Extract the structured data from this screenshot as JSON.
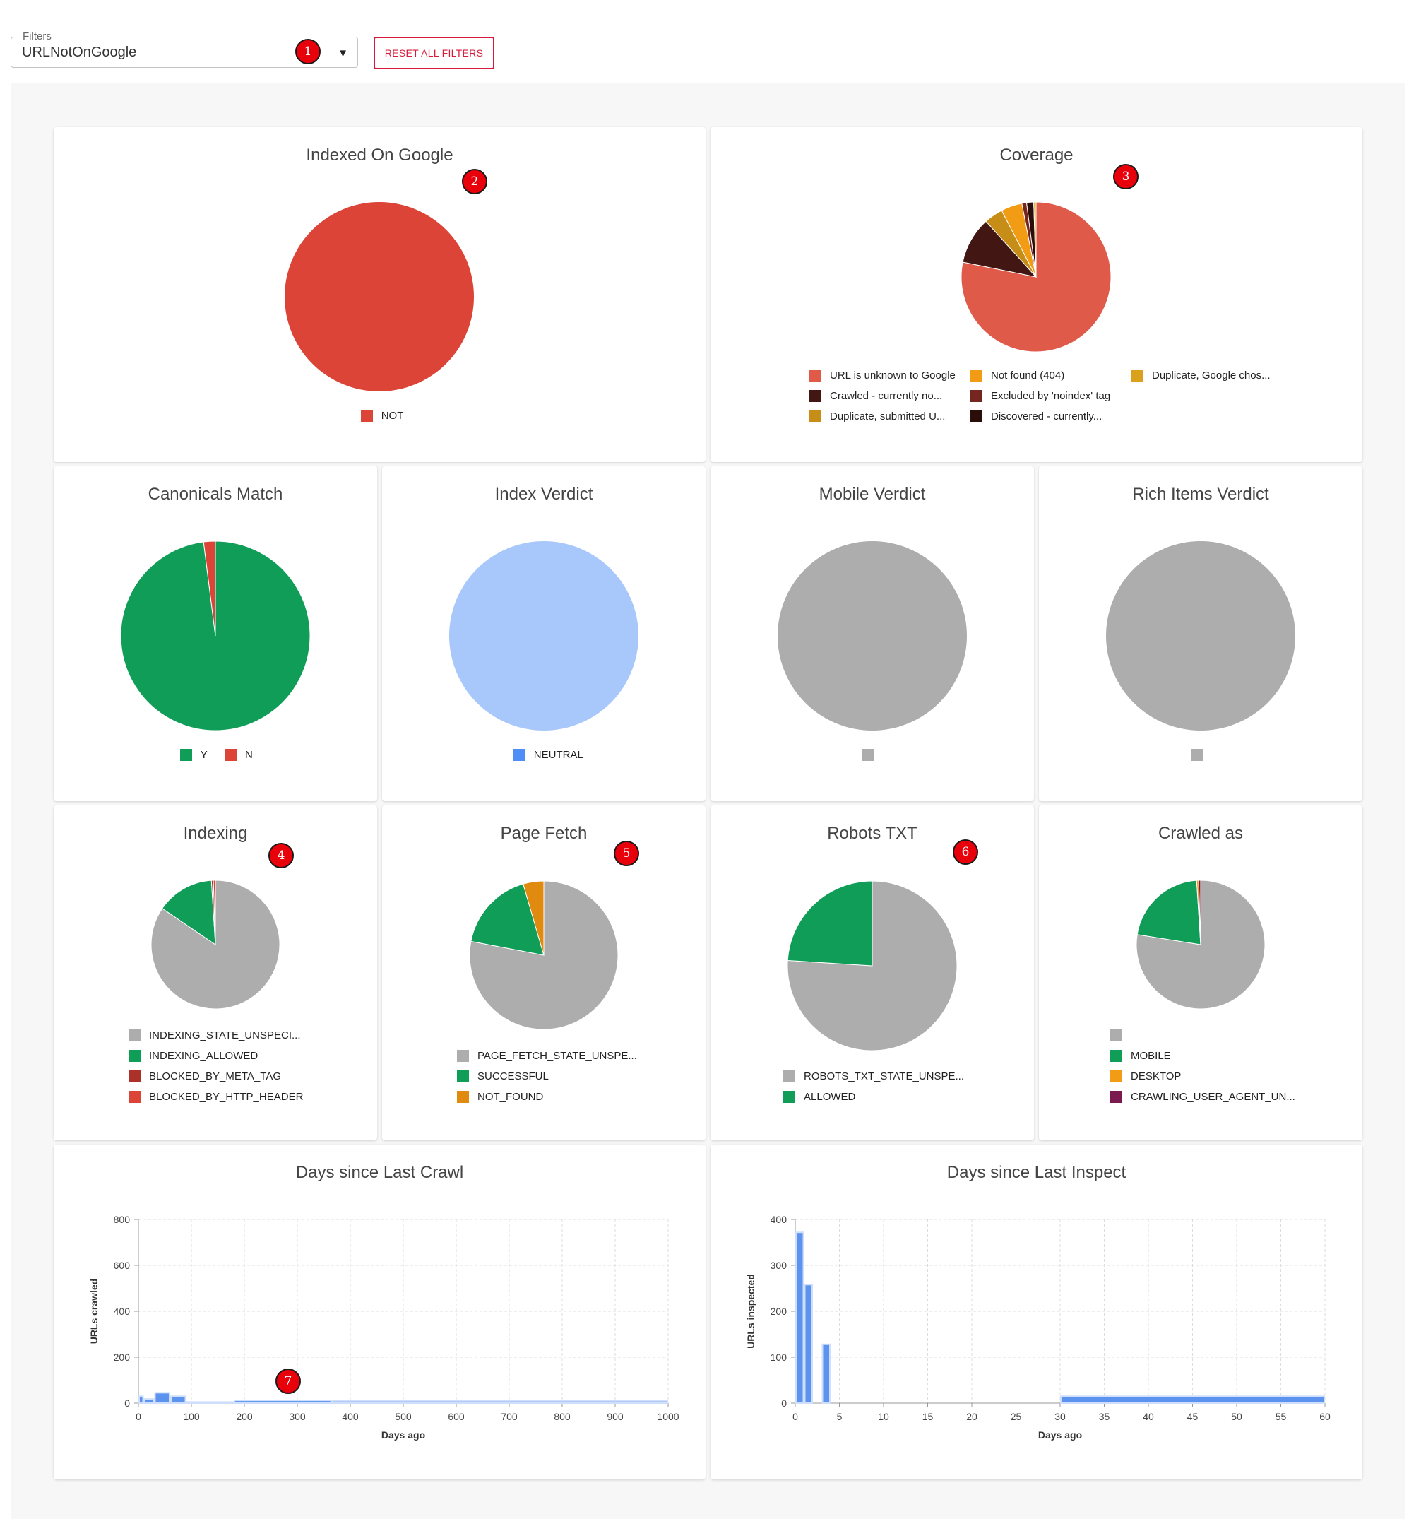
{
  "filters": {
    "label": "Filters",
    "value": "URLNotOnGoogle"
  },
  "reset_button": "RESET ALL FILTERS",
  "markers": [
    "1",
    "2",
    "3",
    "4",
    "5",
    "6",
    "7"
  ],
  "chart_data": [
    {
      "id": "indexed",
      "type": "pie",
      "title": "Indexed On Google",
      "slices": [
        {
          "label": "NOT",
          "value": 100,
          "color": "#db4437"
        }
      ]
    },
    {
      "id": "coverage",
      "type": "pie",
      "title": "Coverage",
      "slices": [
        {
          "label": "URL is unknown to Google",
          "value": 77,
          "color": "#e05a4a"
        },
        {
          "label": "Crawled - currently no...",
          "value": 10,
          "color": "#421713"
        },
        {
          "label": "Duplicate, submitted U...",
          "value": 4,
          "color": "#c68d17"
        },
        {
          "label": "Not found (404)",
          "value": 4.5,
          "color": "#f29c15"
        },
        {
          "label": "Excluded by 'noindex' tag",
          "value": 1,
          "color": "#752620"
        },
        {
          "label": "Discovered - currently...",
          "value": 1.5,
          "color": "#2b0d09"
        },
        {
          "label": "Duplicate, Google chos...",
          "value": 0.5,
          "color": "#dba11d"
        }
      ]
    },
    {
      "id": "canonicals",
      "type": "pie",
      "title": "Canonicals Match",
      "slices": [
        {
          "label": "Y",
          "value": 98,
          "color": "#109d58"
        },
        {
          "label": "N",
          "value": 2,
          "color": "#db4437"
        }
      ]
    },
    {
      "id": "index_verdict",
      "type": "pie",
      "title": "Index Verdict",
      "slices": [
        {
          "label": "NEUTRAL",
          "value": 100,
          "color": "#a8c7fa",
          "legend_color": "#4f8ef7"
        }
      ]
    },
    {
      "id": "mobile_verdict",
      "type": "pie",
      "title": "Mobile Verdict",
      "slices": [
        {
          "label": "",
          "value": 100,
          "color": "#adadad"
        }
      ]
    },
    {
      "id": "rich_verdict",
      "type": "pie",
      "title": "Rich Items Verdict",
      "slices": [
        {
          "label": "",
          "value": 100,
          "color": "#adadad"
        }
      ]
    },
    {
      "id": "indexing",
      "type": "pie",
      "title": "Indexing",
      "slices": [
        {
          "label": "INDEXING_STATE_UNSPECI...",
          "value": 84.5,
          "color": "#adadad"
        },
        {
          "label": "INDEXING_ALLOWED",
          "value": 14.5,
          "color": "#109d58"
        },
        {
          "label": "BLOCKED_BY_META_TAG",
          "value": 0.5,
          "color": "#ab3129"
        },
        {
          "label": "BLOCKED_BY_HTTP_HEADER",
          "value": 0.5,
          "color": "#db4437"
        }
      ]
    },
    {
      "id": "page_fetch",
      "type": "pie",
      "title": "Page Fetch",
      "slices": [
        {
          "label": "PAGE_FETCH_STATE_UNSPE...",
          "value": 78,
          "color": "#adadad"
        },
        {
          "label": "SUCCESSFUL",
          "value": 17.5,
          "color": "#109d58"
        },
        {
          "label": "NOT_FOUND",
          "value": 4.5,
          "color": "#e08a10"
        }
      ]
    },
    {
      "id": "robots",
      "type": "pie",
      "title": "Robots TXT",
      "slices": [
        {
          "label": "ROBOTS_TXT_STATE_UNSPE...",
          "value": 76,
          "color": "#adadad"
        },
        {
          "label": "ALLOWED",
          "value": 24,
          "color": "#109d58"
        }
      ]
    },
    {
      "id": "crawled_as",
      "type": "pie",
      "title": "Crawled as",
      "slices": [
        {
          "label": "",
          "value": 77.5,
          "color": "#adadad"
        },
        {
          "label": "MOBILE",
          "value": 21.5,
          "color": "#109d58"
        },
        {
          "label": "DESKTOP",
          "value": 0.5,
          "color": "#f29c15"
        },
        {
          "label": "CRAWLING_USER_AGENT_UN...",
          "value": 0.5,
          "color": "#7b1a4f"
        }
      ]
    },
    {
      "id": "last_crawl",
      "type": "bar",
      "title": "Days since Last Crawl",
      "xlabel": "Days ago",
      "ylabel": "URLs crawled",
      "xlim": [
        0,
        1000
      ],
      "ylim": [
        0,
        800
      ],
      "xticks": [
        0,
        100,
        200,
        300,
        400,
        500,
        600,
        700,
        800,
        900,
        1000
      ],
      "yticks": [
        0,
        200,
        400,
        600,
        800
      ],
      "bars": [
        {
          "x0": 0,
          "x1": 10,
          "value": 30
        },
        {
          "x0": 10,
          "x1": 30,
          "value": 18
        },
        {
          "x0": 30,
          "x1": 60,
          "value": 45
        },
        {
          "x0": 60,
          "x1": 90,
          "value": 30
        },
        {
          "x0": 90,
          "x1": 180,
          "value": 5
        },
        {
          "x0": 180,
          "x1": 365,
          "value": 12
        },
        {
          "x0": 365,
          "x1": 1000,
          "value": 10
        }
      ]
    },
    {
      "id": "last_inspect",
      "type": "bar",
      "title": "Days since Last Inspect",
      "xlabel": "Days ago",
      "ylabel": "URLs inspected",
      "xlim": [
        0,
        60
      ],
      "ylim": [
        0,
        400
      ],
      "xticks": [
        0,
        5,
        10,
        15,
        20,
        25,
        30,
        35,
        40,
        45,
        50,
        55,
        60
      ],
      "yticks": [
        0,
        100,
        200,
        300,
        400
      ],
      "bars": [
        {
          "x0": 0,
          "x1": 1,
          "value": 372
        },
        {
          "x0": 1,
          "x1": 2,
          "value": 258
        },
        {
          "x0": 3,
          "x1": 4,
          "value": 128
        },
        {
          "x0": 30,
          "x1": 60,
          "value": 15
        }
      ]
    }
  ]
}
